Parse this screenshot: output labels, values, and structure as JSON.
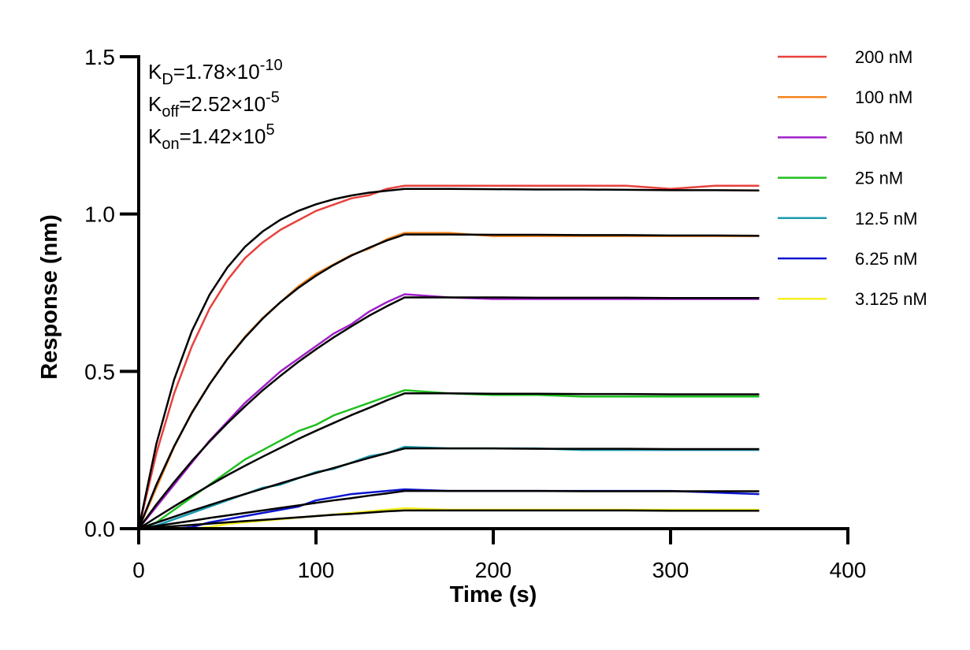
{
  "chart_data": {
    "type": "line",
    "x_label": "Time (s)",
    "y_label": "Response (nm)",
    "xlim": [
      0,
      400
    ],
    "ylim": [
      0,
      1.5
    ],
    "xticks": [
      0,
      100,
      200,
      300,
      400
    ],
    "yticks": [
      {
        "value": 0,
        "label": "0.0"
      },
      {
        "value": 0.5,
        "label": "0.5"
      },
      {
        "value": 1.0,
        "label": "1.0"
      },
      {
        "value": 1.5,
        "label": "1.5"
      }
    ],
    "annotations": [
      {
        "symbol": "K",
        "subscript": "D",
        "text": "=1.78×10",
        "superscript": "-10"
      },
      {
        "symbol": "K",
        "subscript": "off",
        "text": "=2.52×10",
        "superscript": "-5"
      },
      {
        "symbol": "K",
        "subscript": "on",
        "text": "=1.42×10",
        "superscript": "5"
      }
    ],
    "x": [
      0,
      10,
      20,
      30,
      40,
      50,
      60,
      70,
      80,
      90,
      100,
      110,
      120,
      130,
      140,
      150,
      175,
      200,
      225,
      250,
      275,
      300,
      325,
      350
    ],
    "series": [
      {
        "name": "200 nM",
        "color": "#e8413c",
        "values": [
          0,
          0.24,
          0.43,
          0.58,
          0.7,
          0.79,
          0.86,
          0.91,
          0.95,
          0.98,
          1.01,
          1.03,
          1.05,
          1.06,
          1.08,
          1.09,
          1.09,
          1.09,
          1.09,
          1.09,
          1.09,
          1.08,
          1.09,
          1.09
        ]
      },
      {
        "name": "100 nM",
        "color": "#f5841f",
        "values": [
          0,
          0.13,
          0.26,
          0.37,
          0.46,
          0.54,
          0.61,
          0.67,
          0.72,
          0.77,
          0.81,
          0.84,
          0.87,
          0.89,
          0.92,
          0.94,
          0.94,
          0.93,
          0.93,
          0.93,
          0.93,
          0.93,
          0.93,
          0.93
        ]
      },
      {
        "name": "50 nM",
        "color": "#a020c8",
        "values": [
          0,
          0.07,
          0.14,
          0.21,
          0.28,
          0.34,
          0.4,
          0.45,
          0.5,
          0.54,
          0.58,
          0.62,
          0.65,
          0.69,
          0.72,
          0.745,
          0.735,
          0.73,
          0.73,
          0.73,
          0.73,
          0.73,
          0.73,
          0.73
        ]
      },
      {
        "name": "25 nM",
        "color": "#1fbf1f",
        "values": [
          0,
          0.02,
          0.06,
          0.1,
          0.14,
          0.18,
          0.22,
          0.25,
          0.28,
          0.31,
          0.33,
          0.36,
          0.38,
          0.4,
          0.42,
          0.44,
          0.43,
          0.425,
          0.425,
          0.42,
          0.42,
          0.42,
          0.42,
          0.42
        ]
      },
      {
        "name": "12.5 nM",
        "color": "#1a9bb0",
        "values": [
          0,
          0.01,
          0.03,
          0.05,
          0.07,
          0.09,
          0.11,
          0.13,
          0.14,
          0.16,
          0.18,
          0.19,
          0.21,
          0.23,
          0.24,
          0.26,
          0.255,
          0.255,
          0.255,
          0.25,
          0.25,
          0.25,
          0.25,
          0.25
        ]
      },
      {
        "name": "6.25 nM",
        "color": "#0a14d0",
        "values": [
          0,
          0,
          0,
          0.005,
          0.02,
          0.03,
          0.04,
          0.05,
          0.06,
          0.07,
          0.09,
          0.1,
          0.11,
          0.115,
          0.12,
          0.125,
          0.12,
          0.12,
          0.12,
          0.12,
          0.12,
          0.12,
          0.115,
          0.11
        ]
      },
      {
        "name": "3.125 nM",
        "color": "#f5f020",
        "values": [
          null,
          null,
          null,
          0,
          0.005,
          0.015,
          0.02,
          0.025,
          0.03,
          0.035,
          0.04,
          0.045,
          0.05,
          0.055,
          0.06,
          0.065,
          0.06,
          0.06,
          0.06,
          0.06,
          0.06,
          0.06,
          0.06,
          0.06
        ]
      }
    ],
    "fits": [
      {
        "color": "#000000",
        "values": [
          0,
          0.27,
          0.474,
          0.628,
          0.744,
          0.83,
          0.896,
          0.945,
          0.982,
          1.01,
          1.031,
          1.047,
          1.059,
          1.068,
          1.074,
          1.08,
          1.08,
          1.079,
          1.078,
          1.078,
          1.077,
          1.076,
          1.076,
          1.075
        ]
      },
      {
        "color": "#000000",
        "values": [
          0,
          0.14,
          0.262,
          0.368,
          0.459,
          0.539,
          0.608,
          0.668,
          0.72,
          0.765,
          0.804,
          0.838,
          0.868,
          0.893,
          0.916,
          0.935,
          0.935,
          0.934,
          0.934,
          0.933,
          0.933,
          0.932,
          0.932,
          0.931
        ]
      },
      {
        "color": "#000000",
        "values": [
          0,
          0.077,
          0.148,
          0.215,
          0.277,
          0.335,
          0.389,
          0.44,
          0.486,
          0.53,
          0.57,
          0.608,
          0.643,
          0.677,
          0.707,
          0.735,
          0.735,
          0.735,
          0.734,
          0.734,
          0.734,
          0.733,
          0.733,
          0.733
        ]
      },
      {
        "color": "#000000",
        "values": [
          0,
          0.036,
          0.071,
          0.105,
          0.138,
          0.17,
          0.2,
          0.229,
          0.257,
          0.285,
          0.311,
          0.336,
          0.361,
          0.384,
          0.408,
          0.43,
          0.43,
          0.429,
          0.429,
          0.428,
          0.428,
          0.427,
          0.427,
          0.427
        ]
      },
      {
        "color": "#000000",
        "values": [
          0,
          0.019,
          0.038,
          0.057,
          0.075,
          0.093,
          0.11,
          0.127,
          0.144,
          0.161,
          0.177,
          0.193,
          0.209,
          0.225,
          0.24,
          0.255,
          0.255,
          0.255,
          0.254,
          0.254,
          0.254,
          0.253,
          0.253,
          0.253
        ]
      },
      {
        "color": "#000000",
        "values": [
          0,
          0.0085,
          0.017,
          0.025,
          0.034,
          0.042,
          0.05,
          0.058,
          0.066,
          0.074,
          0.082,
          0.09,
          0.097,
          0.105,
          0.112,
          0.12,
          0.12,
          0.12,
          0.12,
          0.119,
          0.119,
          0.119,
          0.119,
          0.119
        ]
      },
      {
        "color": "#000000",
        "values": [
          0,
          0.004,
          0.008,
          0.012,
          0.016,
          0.02,
          0.024,
          0.028,
          0.032,
          0.036,
          0.04,
          0.044,
          0.047,
          0.051,
          0.055,
          0.058,
          0.058,
          0.058,
          0.058,
          0.058,
          0.058,
          0.057,
          0.057,
          0.057
        ]
      }
    ]
  }
}
